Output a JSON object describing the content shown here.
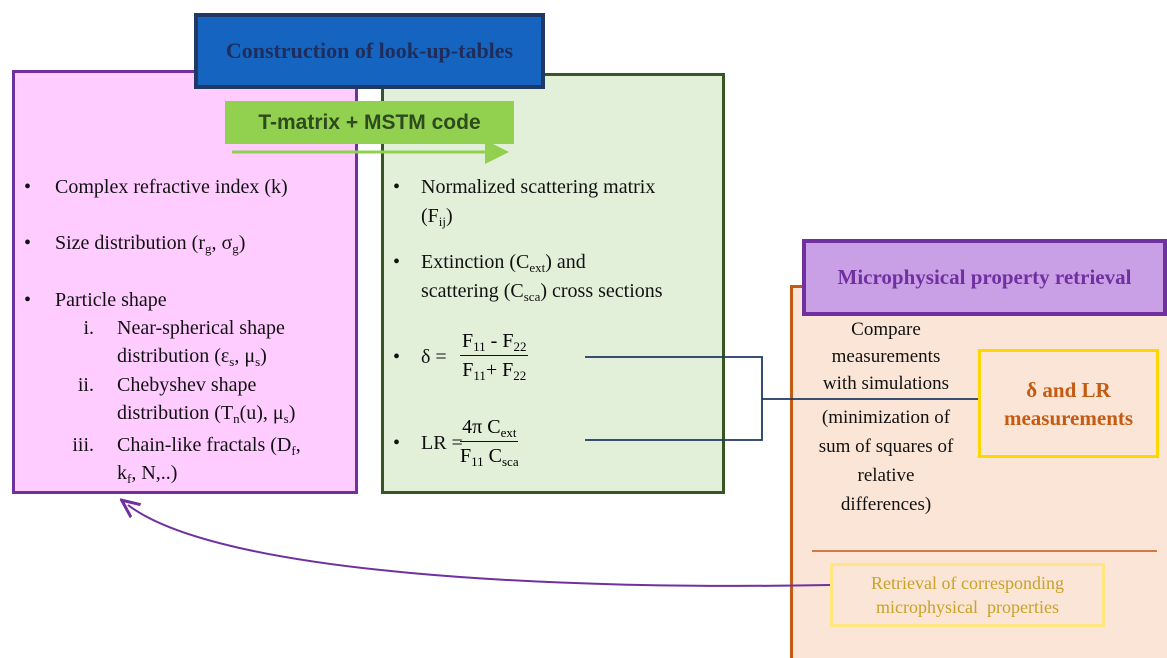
{
  "title": "Construction of look-up-tables",
  "code_label": "T-matrix + MSTM code",
  "inputs": [
    {
      "lines": [
        [
          {
            "text": "Complex refractive index (k)"
          }
        ]
      ]
    },
    {
      "lines": [
        [
          {
            "text": "Size distribution (r"
          },
          {
            "sub": "g"
          },
          {
            "text": ", σ"
          },
          {
            "sub": "g"
          },
          {
            "text": ")"
          }
        ]
      ]
    },
    {
      "lines": [
        [
          {
            "text": "Particle shape"
          }
        ]
      ]
    },
    {
      "marker": "i.",
      "lines": [
        [
          {
            "text": "Near-spherical shape"
          }
        ],
        [
          {
            "text": "distribution (ε"
          },
          {
            "sub": "s"
          },
          {
            "text": ", μ"
          },
          {
            "sub": "s"
          },
          {
            "text": ")"
          }
        ]
      ]
    },
    {
      "marker": "ii.",
      "lines": [
        [
          {
            "text": "Chebyshev shape"
          }
        ],
        [
          {
            "text": "distribution (T"
          },
          {
            "sub": "n"
          },
          {
            "text": "(u), μ"
          },
          {
            "sub": "s"
          },
          {
            "text": ")"
          }
        ]
      ]
    },
    {
      "marker": "iii.",
      "lines": [
        [
          {
            "text": "Chain-like fractals (D"
          },
          {
            "sub": "f"
          },
          {
            "text": ","
          }
        ],
        [
          {
            "text": "k"
          },
          {
            "sub": "f"
          },
          {
            "text": ", N,..)"
          }
        ]
      ]
    }
  ],
  "outputs": [
    {
      "lines": [
        [
          {
            "text": "Normalized scattering matrix"
          }
        ],
        [
          {
            "text": "(F"
          },
          {
            "sub": "ij"
          },
          {
            "text": ")"
          }
        ]
      ]
    },
    {
      "lines": [
        [
          {
            "text": "Extinction (C"
          },
          {
            "sub": "ext"
          },
          {
            "text": ") and"
          }
        ],
        [
          {
            "text": "scattering (C"
          },
          {
            "sub": "sca"
          },
          {
            "text": ") cross sections"
          }
        ]
      ]
    },
    {
      "lhs": "δ =",
      "num": [
        {
          "text": "F"
        },
        {
          "sub": "11"
        },
        {
          "text": " - F"
        },
        {
          "sub": "22"
        }
      ],
      "den": [
        {
          "text": "F"
        },
        {
          "sub": "11"
        },
        {
          "text": "+ F"
        },
        {
          "sub": "22"
        }
      ]
    },
    {
      "lhs": "LR =",
      "num": [
        {
          "text": "4π C"
        },
        {
          "sub": "ext"
        }
      ],
      "den": [
        {
          "text": "F"
        },
        {
          "sub": "11"
        },
        {
          "text": " C"
        },
        {
          "sub": "sca"
        }
      ]
    }
  ],
  "retrieval": {
    "title": "Microphysical property retrieval",
    "compare": [
      "Compare",
      "measurements",
      "with simulations"
    ],
    "minimization": [
      "(minimization of",
      "sum of squares of",
      "relative",
      "differences)"
    ],
    "measurements": [
      "δ and LR",
      "measurements"
    ],
    "result": [
      "Retrieval of corresponding",
      "microphysical  properties"
    ]
  }
}
